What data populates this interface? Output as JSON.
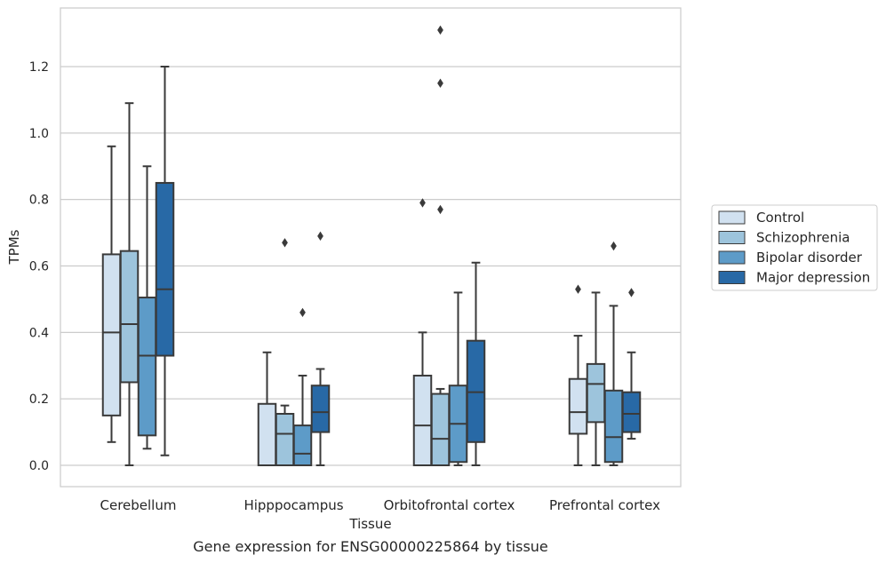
{
  "chart_data": {
    "type": "box",
    "title": "",
    "caption": "Gene expression for ENSG00000225864 by tissue",
    "xlabel": "Tissue",
    "ylabel": "TPMs",
    "ylim": [
      -0.065,
      1.38
    ],
    "yticks": [
      0.0,
      0.2,
      0.4,
      0.6,
      0.8,
      1.0,
      1.2
    ],
    "ytick_labels": [
      "0.0",
      "0.2",
      "0.4",
      "0.6",
      "0.8",
      "1.0",
      "1.2"
    ],
    "grid": "horizontal",
    "legend_position": "right",
    "categories": [
      "Cerebellum",
      "Hipppocampus",
      "Orbitofrontal cortex",
      "Prefrontal cortex"
    ],
    "series": [
      {
        "name": "Control",
        "color": "#d1e1f0",
        "boxes": [
          {
            "q1": 0.15,
            "median": 0.4,
            "q3": 0.635,
            "whisker_low": 0.07,
            "whisker_high": 0.96,
            "outliers": []
          },
          {
            "q1": 0.0,
            "median": 0.0,
            "q3": 0.185,
            "whisker_low": 0.0,
            "whisker_high": 0.34,
            "outliers": []
          },
          {
            "q1": 0.0,
            "median": 0.12,
            "q3": 0.27,
            "whisker_low": 0.0,
            "whisker_high": 0.4,
            "outliers": [
              0.79
            ]
          },
          {
            "q1": 0.095,
            "median": 0.16,
            "q3": 0.26,
            "whisker_low": 0.0,
            "whisker_high": 0.39,
            "outliers": [
              0.53
            ]
          }
        ]
      },
      {
        "name": "Schizophrenia",
        "color": "#9dc4dc",
        "boxes": [
          {
            "q1": 0.25,
            "median": 0.425,
            "q3": 0.645,
            "whisker_low": 0.0,
            "whisker_high": 1.09,
            "outliers": []
          },
          {
            "q1": 0.0,
            "median": 0.095,
            "q3": 0.155,
            "whisker_low": 0.0,
            "whisker_high": 0.18,
            "outliers": [
              0.67
            ]
          },
          {
            "q1": 0.0,
            "median": 0.08,
            "q3": 0.215,
            "whisker_low": 0.0,
            "whisker_high": 0.23,
            "outliers": [
              0.77,
              1.15,
              1.31
            ]
          },
          {
            "q1": 0.13,
            "median": 0.245,
            "q3": 0.305,
            "whisker_low": 0.0,
            "whisker_high": 0.52,
            "outliers": []
          }
        ]
      },
      {
        "name": "Bipolar disorder",
        "color": "#5d9bc8",
        "boxes": [
          {
            "q1": 0.09,
            "median": 0.33,
            "q3": 0.505,
            "whisker_low": 0.05,
            "whisker_high": 0.9,
            "outliers": []
          },
          {
            "q1": 0.0,
            "median": 0.035,
            "q3": 0.12,
            "whisker_low": 0.0,
            "whisker_high": 0.27,
            "outliers": [
              0.46
            ]
          },
          {
            "q1": 0.01,
            "median": 0.125,
            "q3": 0.24,
            "whisker_low": 0.0,
            "whisker_high": 0.52,
            "outliers": []
          },
          {
            "q1": 0.01,
            "median": 0.085,
            "q3": 0.225,
            "whisker_low": 0.0,
            "whisker_high": 0.48,
            "outliers": [
              0.66
            ]
          }
        ]
      },
      {
        "name": "Major depression",
        "color": "#2869a6",
        "boxes": [
          {
            "q1": 0.33,
            "median": 0.53,
            "q3": 0.85,
            "whisker_low": 0.03,
            "whisker_high": 1.2,
            "outliers": []
          },
          {
            "q1": 0.1,
            "median": 0.16,
            "q3": 0.24,
            "whisker_low": 0.0,
            "whisker_high": 0.29,
            "outliers": [
              0.69
            ]
          },
          {
            "q1": 0.07,
            "median": 0.22,
            "q3": 0.375,
            "whisker_low": 0.0,
            "whisker_high": 0.61,
            "outliers": []
          },
          {
            "q1": 0.1,
            "median": 0.155,
            "q3": 0.22,
            "whisker_low": 0.08,
            "whisker_high": 0.34,
            "outliers": [
              0.52
            ]
          }
        ]
      }
    ]
  }
}
